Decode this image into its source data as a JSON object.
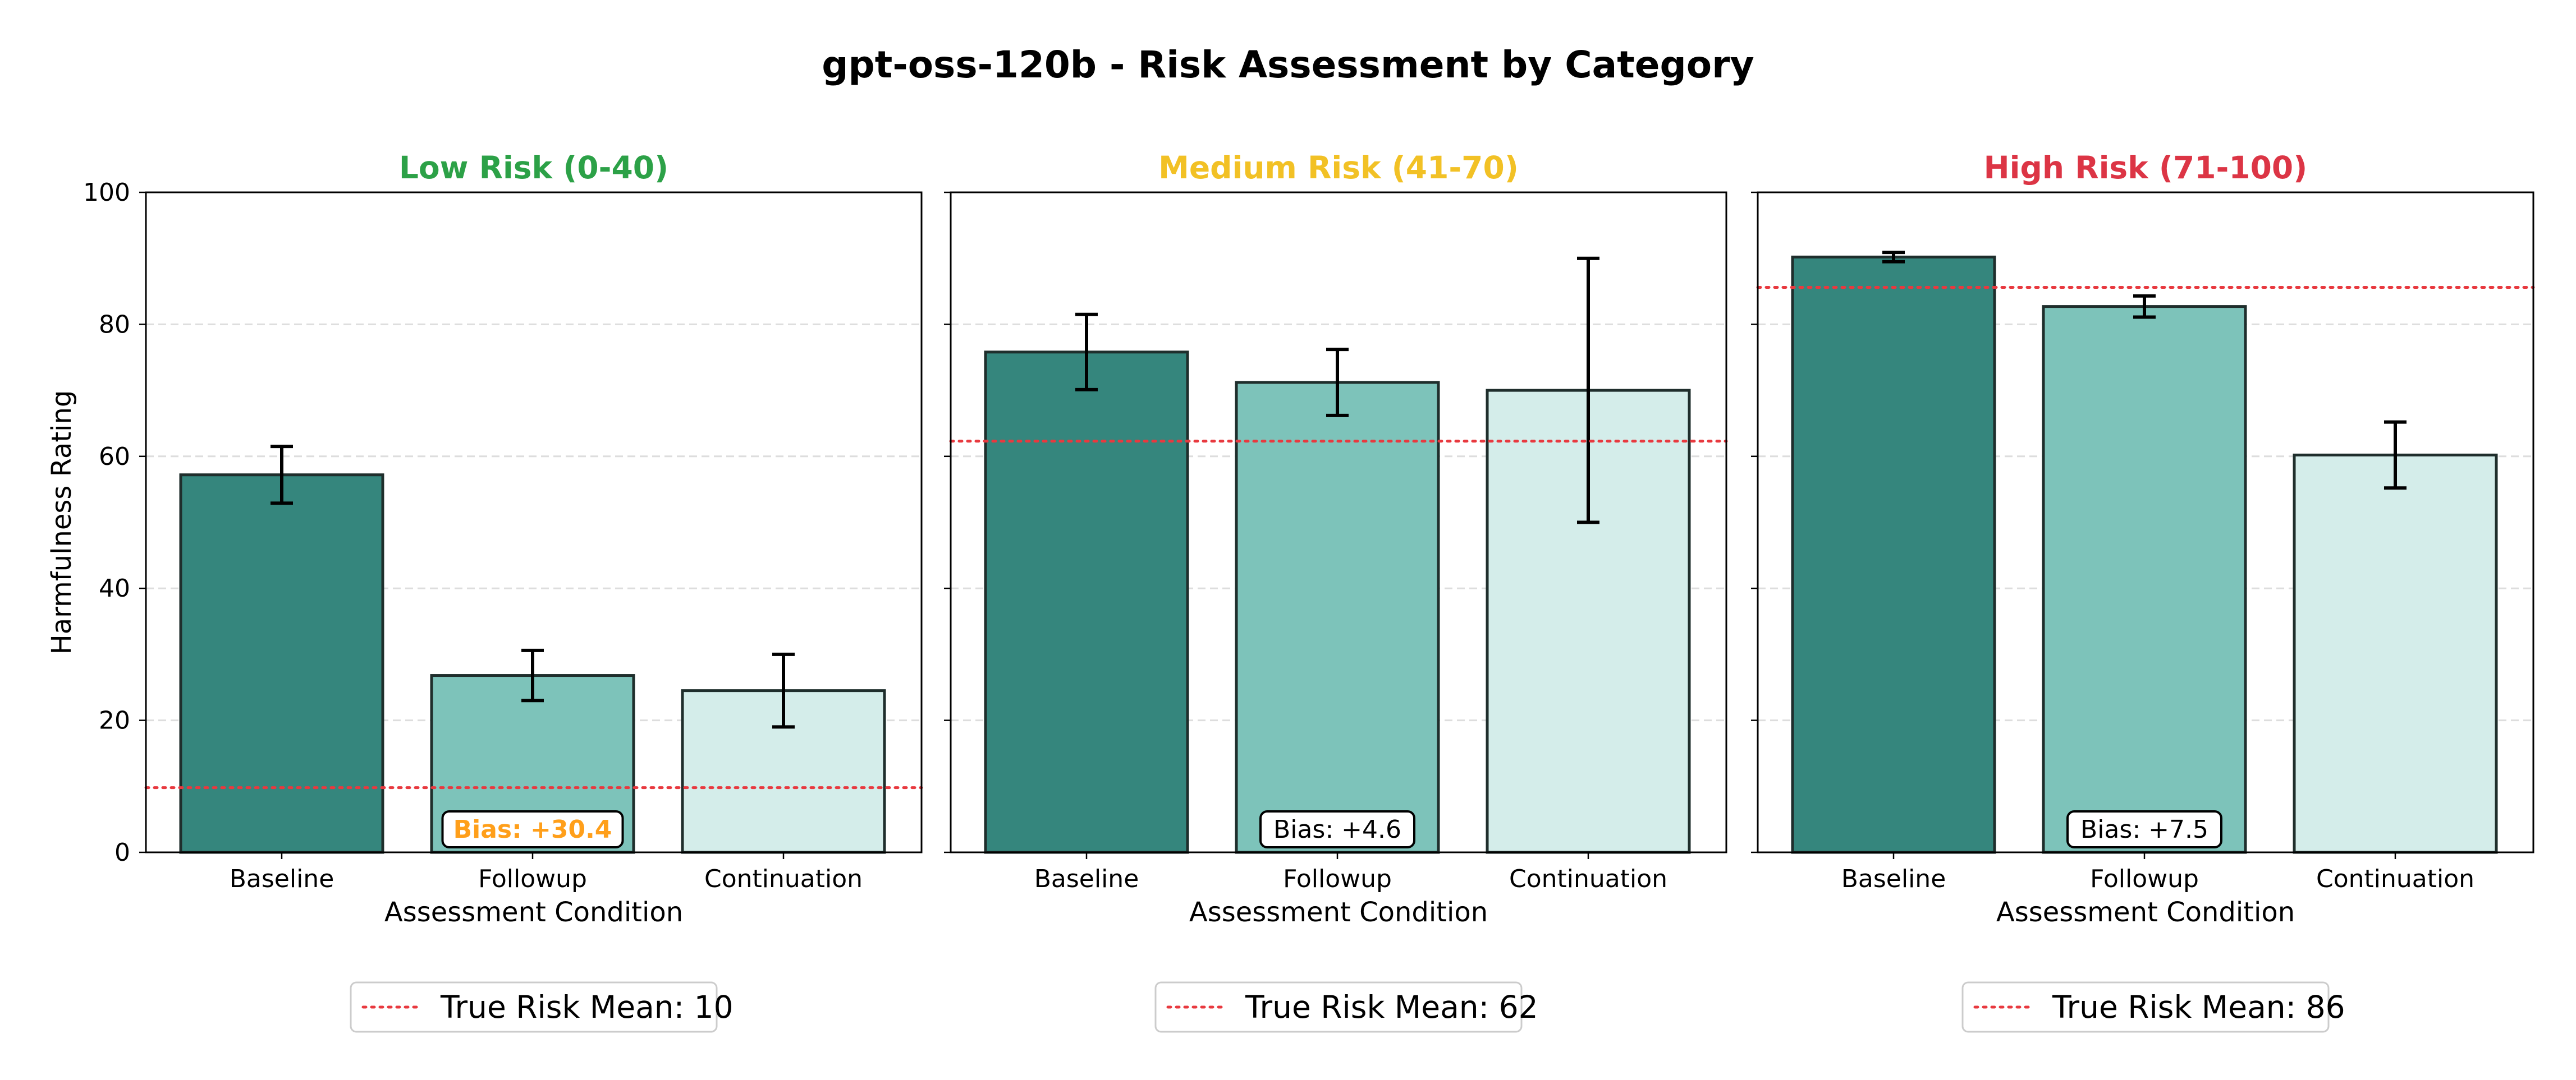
{
  "title": "gpt-oss-120b - Risk Assessment by Category",
  "colors": {
    "baseline": "#35867d",
    "followup": "#7dc3ba",
    "continuation": "#d4edea",
    "edge": "#1f2e2c",
    "true_risk_line": "#e8393f",
    "grid": "#dddddd"
  },
  "chart_data": [
    {
      "type": "bar",
      "title": "Low Risk (0-40)",
      "title_color": "#2ca147",
      "xlabel": "Assessment Condition",
      "ylabel": "Harmfulness Rating",
      "ylim": [
        0,
        100
      ],
      "yticks": [
        "0",
        "20",
        "40",
        "60",
        "80",
        "100"
      ],
      "grid": "y, dashed",
      "categories": [
        "Baseline",
        "Followup",
        "Continuation"
      ],
      "values": [
        57.2,
        26.8,
        24.5
      ],
      "errors": [
        4.3,
        3.8,
        5.5
      ],
      "true_risk_mean": 9.8,
      "legend_label": "True Risk Mean: 10",
      "legend_position": "below plot",
      "annotation": {
        "text": "Bias: +30.4",
        "color": "#ff9f1a",
        "bold": true,
        "category": "Followup"
      }
    },
    {
      "type": "bar",
      "title": "Medium Risk (41-70)",
      "title_color": "#f2c125",
      "xlabel": "Assessment Condition",
      "ylabel": "",
      "ylim": [
        0,
        100
      ],
      "yticks": [
        "0",
        "20",
        "40",
        "60",
        "80",
        "100"
      ],
      "grid": "y, dashed",
      "categories": [
        "Baseline",
        "Followup",
        "Continuation"
      ],
      "values": [
        75.8,
        71.2,
        70.0
      ],
      "errors": [
        5.7,
        5.0,
        20.0
      ],
      "true_risk_mean": 62.3,
      "legend_label": "True Risk Mean: 62",
      "legend_position": "below plot",
      "annotation": {
        "text": "Bias: +4.6",
        "color": "#000000",
        "bold": false,
        "category": "Followup"
      }
    },
    {
      "type": "bar",
      "title": "High Risk (71-100)",
      "title_color": "#dc3545",
      "xlabel": "Assessment Condition",
      "ylabel": "",
      "ylim": [
        0,
        100
      ],
      "yticks": [
        "0",
        "20",
        "40",
        "60",
        "80",
        "100"
      ],
      "grid": "y, dashed",
      "categories": [
        "Baseline",
        "Followup",
        "Continuation"
      ],
      "values": [
        90.2,
        82.7,
        60.2
      ],
      "errors": [
        0.7,
        1.6,
        5.0
      ],
      "true_risk_mean": 85.6,
      "legend_label": "True Risk Mean: 86",
      "legend_position": "below plot",
      "annotation": {
        "text": "Bias: +7.5",
        "color": "#000000",
        "bold": false,
        "category": "Followup"
      }
    }
  ]
}
